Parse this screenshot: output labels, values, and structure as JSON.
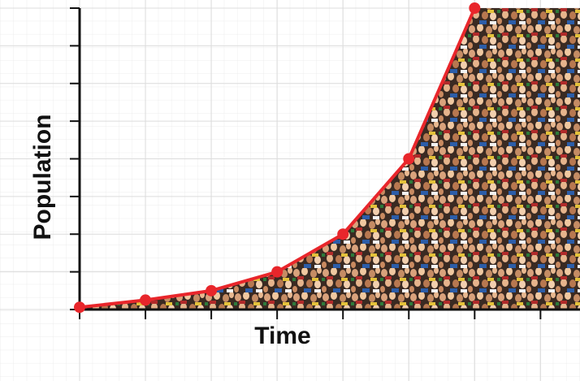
{
  "chart_data": {
    "type": "line",
    "x_label": "Time",
    "y_label": "Population",
    "x": [
      0,
      1,
      2,
      3,
      4,
      5,
      6
    ],
    "values": [
      0.06,
      0.25,
      0.5,
      1,
      2,
      4,
      8
    ],
    "color": "#e8262b",
    "xlim": [
      0,
      7.6
    ],
    "ylim": [
      0,
      8
    ],
    "xticks": [
      0,
      1,
      2,
      3,
      4,
      5,
      6,
      7
    ],
    "yticks": [
      0,
      1,
      2,
      3,
      4,
      5,
      6,
      7,
      8
    ],
    "grid": true
  }
}
